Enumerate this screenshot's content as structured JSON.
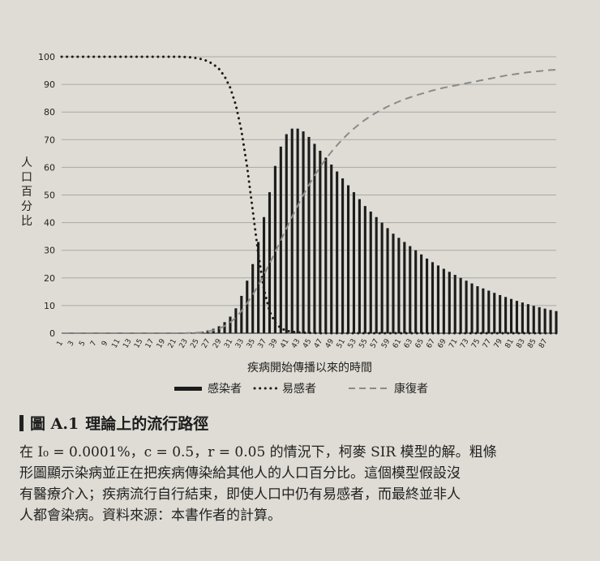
{
  "chart_data": {
    "type": "bar",
    "xlabel": "疾病開始傳播以來的時間",
    "ylabel": "人口百分比",
    "ylim": [
      0,
      100
    ],
    "yticks": [
      0,
      10,
      20,
      30,
      40,
      50,
      60,
      70,
      80,
      90,
      100
    ],
    "x": [
      1,
      2,
      3,
      4,
      5,
      6,
      7,
      8,
      9,
      10,
      11,
      12,
      13,
      14,
      15,
      16,
      17,
      18,
      19,
      20,
      21,
      22,
      23,
      24,
      25,
      26,
      27,
      28,
      29,
      30,
      31,
      32,
      33,
      34,
      35,
      36,
      37,
      38,
      39,
      40,
      41,
      42,
      43,
      44,
      45,
      46,
      47,
      48,
      49,
      50,
      51,
      52,
      53,
      54,
      55,
      56,
      57,
      58,
      59,
      60,
      61,
      62,
      63,
      64,
      65,
      66,
      67,
      68,
      69,
      70,
      71,
      72,
      73,
      74,
      75,
      76,
      77,
      78,
      79,
      80,
      81,
      82,
      83,
      84,
      85,
      86,
      87,
      88,
      89
    ],
    "xtick_labels": [
      "1",
      "3",
      "5",
      "7",
      "9",
      "11",
      "13",
      "15",
      "17",
      "19",
      "21",
      "23",
      "25",
      "27",
      "29",
      "31",
      "33",
      "35",
      "37",
      "39",
      "41",
      "43",
      "45",
      "47",
      "49",
      "51",
      "53",
      "55",
      "57",
      "59",
      "61",
      "63",
      "65",
      "67",
      "69",
      "71",
      "73",
      "75",
      "77",
      "79",
      "81",
      "83",
      "85",
      "87"
    ],
    "series": [
      {
        "name": "感染者",
        "style": "bar",
        "values": [
          0,
          0,
          0,
          0,
          0,
          0,
          0,
          0,
          0,
          0,
          0,
          0,
          0,
          0,
          0,
          0,
          0,
          0,
          0,
          0,
          0,
          0,
          0.1,
          0.2,
          0.4,
          0.6,
          1,
          1.6,
          2.5,
          4,
          6,
          9,
          13.5,
          19,
          25,
          33,
          42,
          51,
          60.5,
          67.5,
          72,
          74,
          74,
          73,
          71,
          68.5,
          66,
          63.5,
          61,
          58.5,
          56,
          53.5,
          51,
          48.5,
          46,
          44,
          42,
          40,
          38,
          36,
          34.5,
          33,
          31.5,
          30,
          28.5,
          27,
          25.7,
          24.5,
          23.3,
          22.2,
          21.1,
          20,
          19,
          18,
          17,
          16.2,
          15.4,
          14.6,
          13.8,
          13.1,
          12.4,
          11.7,
          11.1,
          10.5,
          9.9,
          9.4,
          8.9,
          8.4,
          8
        ]
      },
      {
        "name": "易感者",
        "style": "dotted",
        "values": [
          100,
          100,
          100,
          100,
          100,
          100,
          100,
          100,
          100,
          100,
          100,
          100,
          100,
          100,
          100,
          100,
          100,
          100,
          100,
          100,
          100,
          100,
          99.9,
          99.8,
          99.5,
          99.1,
          98.4,
          97.3,
          95.6,
          92.9,
          88.8,
          82.5,
          73.2,
          60.3,
          44.5,
          28.6,
          15.8,
          7.9,
          3.8,
          1.8,
          0.9,
          0.5,
          0.3,
          0.2,
          0.1,
          0.1,
          0,
          0,
          0,
          0,
          0,
          0,
          0,
          0,
          0,
          0,
          0,
          0,
          0,
          0,
          0,
          0,
          0,
          0,
          0,
          0,
          0,
          0,
          0,
          0,
          0,
          0,
          0,
          0,
          0,
          0,
          0,
          0,
          0,
          0,
          0,
          0,
          0,
          0,
          0,
          0,
          0,
          0,
          0
        ]
      },
      {
        "name": "康復者",
        "style": "dashed",
        "values": [
          0,
          0,
          0,
          0,
          0,
          0,
          0,
          0,
          0,
          0,
          0,
          0,
          0,
          0,
          0,
          0,
          0,
          0,
          0,
          0,
          0,
          0,
          0,
          0.1,
          0.2,
          0.3,
          0.6,
          1,
          1.6,
          2.6,
          3.9,
          5.7,
          8,
          10.8,
          13.9,
          17.4,
          21.2,
          25.2,
          29.3,
          33.6,
          37.9,
          42.1,
          46.1,
          50,
          53.6,
          57,
          60.1,
          63,
          65.6,
          68,
          70.2,
          72.2,
          74,
          75.7,
          77.2,
          78.6,
          79.8,
          80.9,
          82,
          82.9,
          83.8,
          84.6,
          85.3,
          86,
          86.6,
          87.2,
          87.8,
          88.3,
          88.8,
          89.2,
          89.6,
          90,
          90.4,
          90.8,
          91.2,
          91.6,
          92,
          92.4,
          92.8,
          93.2,
          93.5,
          93.8,
          94.1,
          94.4,
          94.6,
          94.8,
          95,
          95.2,
          95.3
        ]
      }
    ],
    "legend": {
      "placement": "bottom",
      "items": [
        {
          "label": "感染者",
          "style": "bar"
        },
        {
          "label": "易感者",
          "style": "dotted"
        },
        {
          "label": "康復者",
          "style": "dashed"
        }
      ]
    },
    "grid": true
  },
  "caption": {
    "figure_label": "圖 A.1",
    "figure_title": "理論上的流行路徑",
    "text_lines": [
      "在 I₀ = 0.0001%，c = 0.5，r = 0.05 的情況下，柯麥 SIR 模型的解。粗條",
      "形圖顯示染病並正在把疾病傳染給其他人的人口百分比。這個模型假設沒",
      "有醫療介入；疾病流行自行結束，即使人口中仍有易感者，而最終並非人",
      "人都會染病。資料來源：本書作者的計算。"
    ]
  },
  "colors": {
    "ink": "#1c1c1c",
    "dashed_series": "#8a8a8a",
    "grid": "#a8a8a8",
    "paper": "#dedcd4"
  }
}
